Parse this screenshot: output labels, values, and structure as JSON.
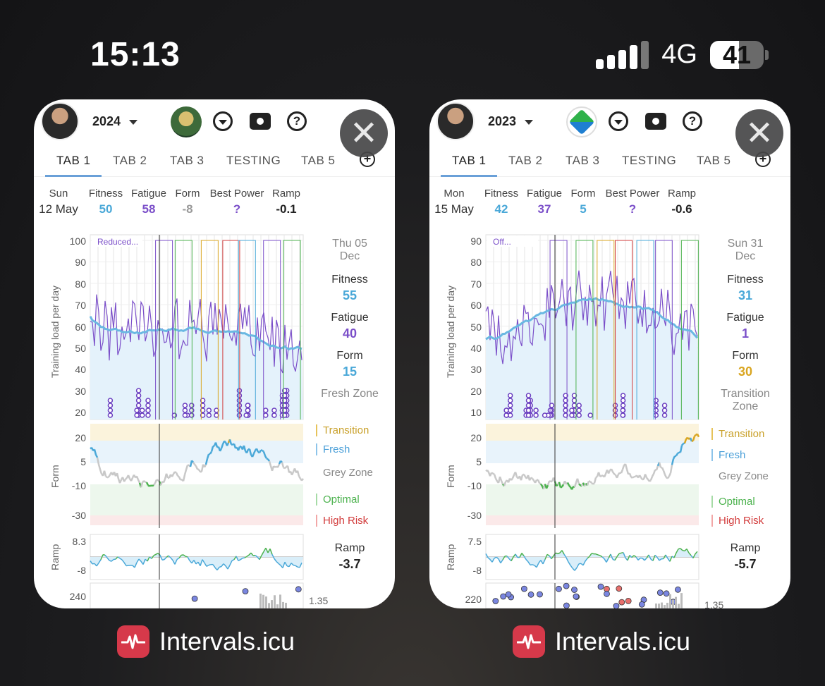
{
  "status": {
    "time": "15:13",
    "network": "4G",
    "battery": "41"
  },
  "cards": [
    {
      "year": "2024",
      "tabs": [
        "TAB 1",
        "TAB 2",
        "TAB 3",
        "TESTING",
        "TAB 5"
      ],
      "summary": {
        "day": "Sun",
        "date": "12 May",
        "fitness_label": "Fitness",
        "fitness": "50",
        "fatigue_label": "Fatigue",
        "fatigue": "58",
        "form_label": "Form",
        "form": "-8",
        "best_power_label": "Best Power",
        "best_power": "?",
        "ramp_label": "Ramp",
        "ramp": "-0.1"
      },
      "hover": {
        "day": "Thu 05",
        "month": "Dec",
        "fitness_label": "Fitness",
        "fitness": "55",
        "fatigue_label": "Fatigue",
        "fatigue": "40",
        "form_label": "Form",
        "form": "15",
        "zone": "Fresh Zone"
      },
      "training_axis_label": "Training load per day",
      "training_ticks": [
        "100",
        "90",
        "80",
        "70",
        "60",
        "50",
        "40",
        "30",
        "20"
      ],
      "annotation": "Reduced...",
      "form_axis_label": "Form",
      "form_ticks": [
        "20",
        "5",
        "-10",
        "-30"
      ],
      "zones": [
        "Transition",
        "Fresh",
        "Grey Zone",
        "Optimal",
        "High Risk"
      ],
      "ramp_axis_label": "Ramp",
      "ramp_ticks": [
        "8.3",
        "-8"
      ],
      "ramp_label": "Ramp",
      "ramp_value": "-3.7",
      "bottom_tick": "240",
      "bottom_right": "1.35",
      "app_name": "Intervals.icu"
    },
    {
      "year": "2023",
      "tabs": [
        "TAB 1",
        "TAB 2",
        "TAB 3",
        "TESTING",
        "TAB 5"
      ],
      "summary": {
        "day": "Mon",
        "date": "15 May",
        "fitness_label": "Fitness",
        "fitness": "42",
        "fatigue_label": "Fatigue",
        "fatigue": "37",
        "form_label": "Form",
        "form": "5",
        "best_power_label": "Best Power",
        "best_power": "?",
        "ramp_label": "Ramp",
        "ramp": "-0.6"
      },
      "hover": {
        "day": "Sun 31",
        "month": "Dec",
        "fitness_label": "Fitness",
        "fitness": "31",
        "fatigue_label": "Fatigue",
        "fatigue": "1",
        "form_label": "Form",
        "form": "30",
        "zone_line1": "Transition",
        "zone_line2": "Zone"
      },
      "training_axis_label": "Training load per day",
      "training_ticks": [
        "90",
        "80",
        "70",
        "60",
        "50",
        "40",
        "30",
        "20",
        "10"
      ],
      "annotation": "Off...",
      "form_axis_label": "Form",
      "form_ticks": [
        "20",
        "5",
        "-10",
        "-30"
      ],
      "zones": [
        "Transition",
        "Fresh",
        "Grey Zone",
        "Optimal",
        "High Risk"
      ],
      "ramp_axis_label": "Ramp",
      "ramp_ticks": [
        "7.5",
        "-8"
      ],
      "ramp_label": "Ramp",
      "ramp_value": "-5.7",
      "bottom_tick": "220",
      "bottom_right": "1.35",
      "app_name": "Intervals.icu"
    }
  ],
  "colors": {
    "fitness": "#4aa8d8",
    "fatigue": "#7b4fc9",
    "form_grey": "#999999",
    "form_positive": "#4aa8d8",
    "form_transition": "#d9a520",
    "grey_zone": "#c8c8c8",
    "optimal": "#4cb24e",
    "high_risk": "#d23c3c",
    "app_icon": "#d6394a"
  }
}
